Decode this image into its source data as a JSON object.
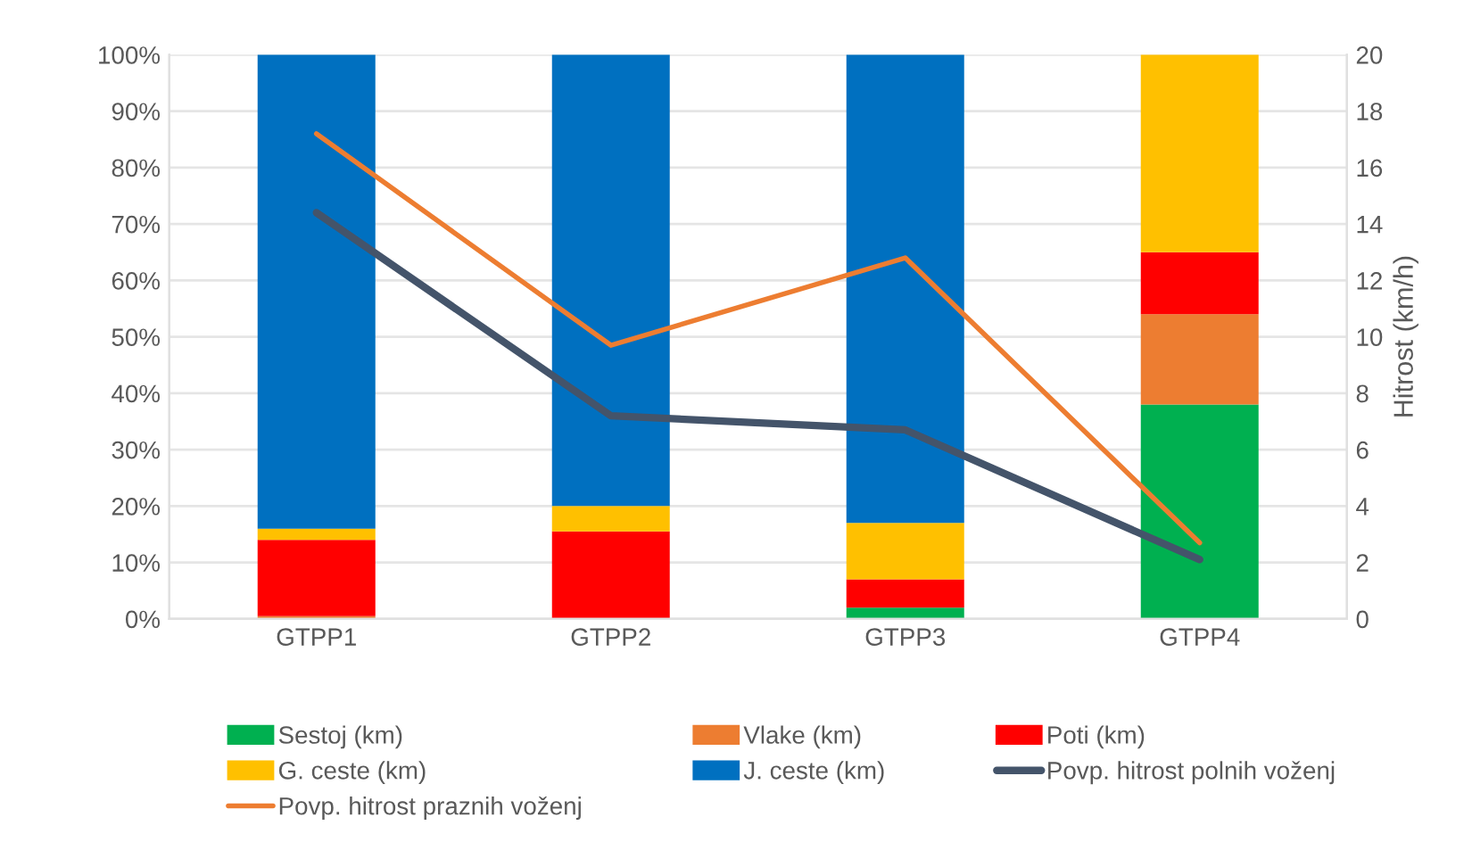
{
  "chart_data": {
    "type": "bar",
    "stacked": true,
    "categories": [
      "GTPP1",
      "GTPP2",
      "GTPP3",
      "GTPP4"
    ],
    "series": [
      {
        "name": "Sestoj (km)",
        "color": "#00b050",
        "values": [
          0,
          0,
          2,
          38
        ]
      },
      {
        "name": "Vlake (km)",
        "color": "#ed7d31",
        "values": [
          0.5,
          0,
          0,
          16
        ]
      },
      {
        "name": "Poti (km)",
        "color": "#ff0000",
        "values": [
          13.5,
          15.5,
          5,
          11
        ]
      },
      {
        "name": "G. ceste (km)",
        "color": "#ffc000",
        "values": [
          2,
          4.5,
          10,
          35
        ]
      },
      {
        "name": "J. ceste (km)",
        "color": "#0070c0",
        "values": [
          84,
          80,
          83,
          0
        ]
      },
      {
        "name": "Povp. hitrost polnih voženj",
        "type": "line",
        "axis": "y2",
        "color": "#44546a",
        "values": [
          14.4,
          7.2,
          6.7,
          2.1
        ]
      },
      {
        "name": "Povp. hitrost praznih voženj",
        "type": "line",
        "axis": "y2",
        "color": "#ed7d31",
        "values": [
          17.2,
          9.7,
          12.8,
          2.7
        ]
      }
    ],
    "ylim": [
      0,
      100
    ],
    "yticks": [
      {
        "value": 0,
        "label": "0%"
      },
      {
        "value": 10,
        "label": "10%"
      },
      {
        "value": 20,
        "label": "20%"
      },
      {
        "value": 30,
        "label": "30%"
      },
      {
        "value": 40,
        "label": "40%"
      },
      {
        "value": 50,
        "label": "50%"
      },
      {
        "value": 60,
        "label": "60%"
      },
      {
        "value": 70,
        "label": "70%"
      },
      {
        "value": 80,
        "label": "80%"
      },
      {
        "value": 90,
        "label": "90%"
      },
      {
        "value": 100,
        "label": "100%"
      }
    ],
    "y2label": "Hitrost (km/h)",
    "y2lim": [
      0,
      20
    ],
    "y2ticks": [
      0,
      2,
      4,
      6,
      8,
      10,
      12,
      14,
      16,
      18,
      20
    ],
    "grid": "y",
    "legend": "bottom"
  }
}
